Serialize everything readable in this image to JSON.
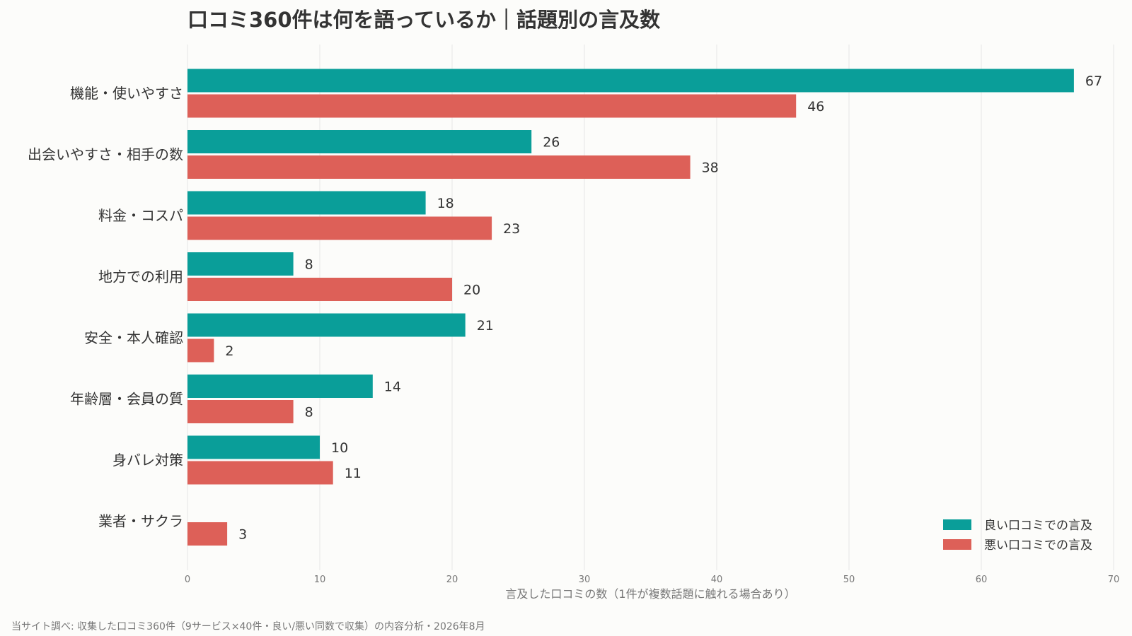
{
  "chart_data": {
    "type": "bar",
    "orientation": "horizontal",
    "title": "口コミ360件は何を語っているか｜話題別の言及数",
    "xlabel": "言及した口コミの数（1件が複数話題に触れる場合あり）",
    "ylabel": "",
    "xlim": [
      0,
      70
    ],
    "xticks": [
      0,
      10,
      20,
      30,
      40,
      50,
      60,
      70
    ],
    "grid": true,
    "legend_position": "bottom-right",
    "categories": [
      "機能・使いやすさ",
      "出会いやすさ・相手の数",
      "料金・コスパ",
      "地方での利用",
      "安全・本人確認",
      "年齢層・会員の質",
      "身バレ対策",
      "業者・サクラ"
    ],
    "series": [
      {
        "name": "良い口コミでの言及",
        "color": "#0a9e99",
        "values": [
          67,
          26,
          18,
          8,
          21,
          14,
          10,
          0
        ]
      },
      {
        "name": "悪い口コミでの言及",
        "color": "#dd6058",
        "values": [
          46,
          38,
          23,
          20,
          2,
          8,
          11,
          3
        ]
      }
    ]
  },
  "footnote": "当サイト調べ: 収集した口コミ360件（9サービス×40件・良い/悪い同数で収集）の内容分析・2026年8月"
}
